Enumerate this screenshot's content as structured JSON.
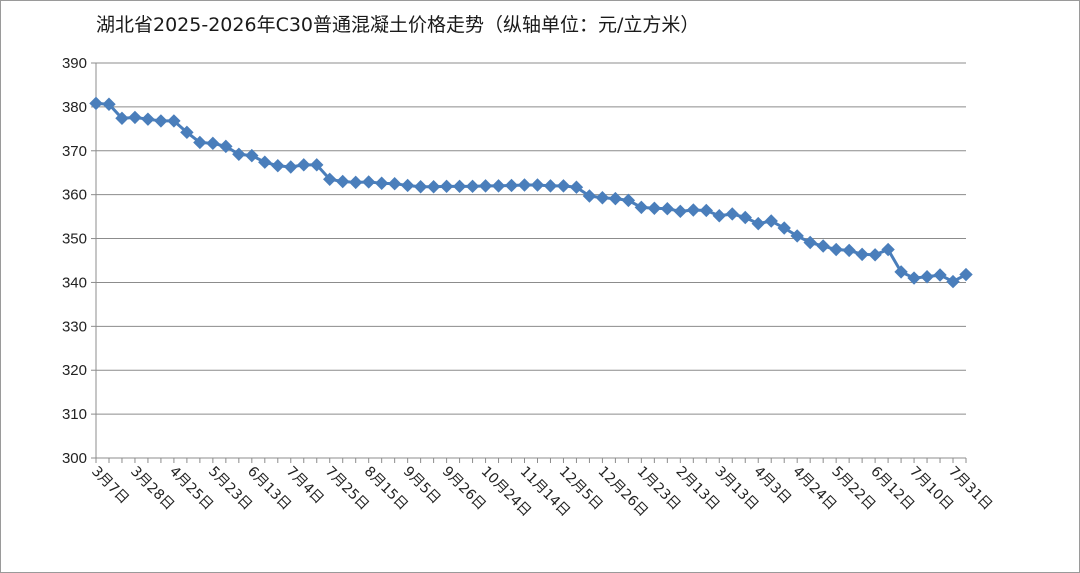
{
  "chart_data": {
    "type": "line",
    "title": "湖北省2025-2026年C30普通混凝土价格走势（纵轴单位：元/立方米）",
    "xlabel": "",
    "ylabel": "",
    "ylim": [
      300,
      390
    ],
    "yticks": [
      300,
      310,
      320,
      330,
      340,
      350,
      360,
      370,
      380,
      390
    ],
    "grid": true,
    "legend": "none",
    "x_tick_labels": [
      "3月7日",
      "3月28日",
      "4月25日",
      "5月23日",
      "6月13日",
      "7月4日",
      "7月25日",
      "8月15日",
      "9月5日",
      "9月26日",
      "10月24日",
      "11月14日",
      "12月5日",
      "12月26日",
      "1月23日",
      "2月13日",
      "3月13日",
      "4月3日",
      "4月24日",
      "5月22日",
      "6月12日",
      "7月10日",
      "7月31日"
    ],
    "series": [
      {
        "color": "#4a7ebb",
        "marker": "diamond",
        "values": [
          380.8,
          380.6,
          377.4,
          377.6,
          377.2,
          376.8,
          376.8,
          374.2,
          371.9,
          371.7,
          371.0,
          369.2,
          368.9,
          367.4,
          366.6,
          366.3,
          366.8,
          366.8,
          363.5,
          363.0,
          362.8,
          362.9,
          362.6,
          362.5,
          362.1,
          361.8,
          361.8,
          361.9,
          361.9,
          361.9,
          362.0,
          362.0,
          362.1,
          362.2,
          362.2,
          362.0,
          362.0,
          361.7,
          359.7,
          359.3,
          359.1,
          358.7,
          357.1,
          356.9,
          356.8,
          356.2,
          356.5,
          356.4,
          355.2,
          355.6,
          354.8,
          353.4,
          354.0,
          352.4,
          350.6,
          349.1,
          348.3,
          347.5,
          347.3,
          346.4,
          346.3,
          347.5,
          342.4,
          341.0,
          341.3,
          341.7,
          340.2,
          341.8
        ]
      }
    ]
  }
}
